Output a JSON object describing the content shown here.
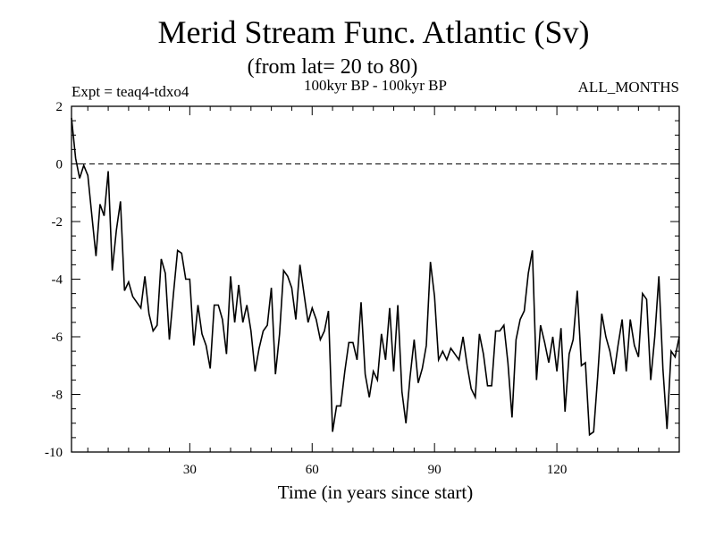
{
  "chart_data": {
    "type": "line",
    "title": "Merid Stream Func. Atlantic (Sv)",
    "subtitle": "(from lat= 20 to 80)",
    "annotation_left": "Expt = teaq4-tdxo4",
    "annotation_center": "100kyr BP - 100kyr BP",
    "annotation_right": "ALL_MONTHS",
    "xlabel": "Time (in years since start)",
    "ylabel": "",
    "xlim": [
      1,
      150
    ],
    "ylim": [
      -10,
      2
    ],
    "xticks": [
      30,
      60,
      90,
      120
    ],
    "yticks": [
      2,
      0,
      -2,
      -4,
      -6,
      -8,
      -10
    ],
    "reference_line": 0,
    "series": [
      {
        "name": "Merid Stream Func. Atlantic",
        "x": [
          1,
          2,
          3,
          4,
          5,
          6,
          7,
          8,
          9,
          10,
          11,
          12,
          13,
          14,
          15,
          16,
          17,
          18,
          19,
          20,
          21,
          22,
          23,
          24,
          25,
          26,
          27,
          28,
          29,
          30,
          31,
          32,
          33,
          34,
          35,
          36,
          37,
          38,
          39,
          40,
          41,
          42,
          43,
          44,
          45,
          46,
          47,
          48,
          49,
          50,
          51,
          52,
          53,
          54,
          55,
          56,
          57,
          58,
          59,
          60,
          61,
          62,
          63,
          64,
          65,
          66,
          67,
          68,
          69,
          70,
          71,
          72,
          73,
          74,
          75,
          76,
          77,
          78,
          79,
          80,
          81,
          82,
          83,
          84,
          85,
          86,
          87,
          88,
          89,
          90,
          91,
          92,
          93,
          94,
          95,
          96,
          97,
          98,
          99,
          100,
          101,
          102,
          103,
          104,
          105,
          106,
          107,
          108,
          109,
          110,
          111,
          112,
          113,
          114,
          115,
          116,
          117,
          118,
          119,
          120,
          121,
          122,
          123,
          124,
          125,
          126,
          127,
          128,
          129,
          130,
          131,
          132,
          133,
          134,
          135,
          136,
          137,
          138,
          139,
          140,
          141,
          142,
          143,
          144,
          145,
          146,
          147,
          148,
          149,
          150
        ],
        "values": [
          1.6,
          0.2,
          -0.5,
          -0.05,
          -0.4,
          -1.8,
          -3.2,
          -1.4,
          -1.8,
          -0.25,
          -3.7,
          -2.3,
          -1.3,
          -4.4,
          -4.1,
          -4.6,
          -4.8,
          -5.0,
          -3.9,
          -5.2,
          -5.8,
          -5.6,
          -3.3,
          -3.8,
          -6.1,
          -4.5,
          -3.0,
          -3.1,
          -4.0,
          -4.0,
          -6.3,
          -4.9,
          -5.9,
          -6.3,
          -7.1,
          -4.9,
          -4.9,
          -5.4,
          -6.6,
          -3.9,
          -5.5,
          -4.2,
          -5.5,
          -4.9,
          -5.8,
          -7.2,
          -6.4,
          -5.8,
          -5.6,
          -4.3,
          -7.3,
          -5.9,
          -3.7,
          -3.9,
          -4.3,
          -5.4,
          -3.5,
          -4.5,
          -5.5,
          -5.0,
          -5.4,
          -6.1,
          -5.8,
          -5.1,
          -9.3,
          -8.4,
          -8.4,
          -7.2,
          -6.2,
          -6.2,
          -6.8,
          -4.8,
          -7.3,
          -8.1,
          -7.2,
          -7.5,
          -5.9,
          -6.8,
          -5.0,
          -7.2,
          -4.9,
          -7.9,
          -9.0,
          -7.4,
          -6.1,
          -7.6,
          -7.1,
          -6.3,
          -3.4,
          -4.6,
          -6.8,
          -6.5,
          -6.8,
          -6.4,
          -6.6,
          -6.8,
          -6.0,
          -7.0,
          -7.8,
          -8.1,
          -5.9,
          -6.6,
          -7.7,
          -7.7,
          -5.8,
          -5.8,
          -5.6,
          -6.9,
          -8.8,
          -6.1,
          -5.4,
          -5.1,
          -3.8,
          -3.0,
          -7.5,
          -5.6,
          -6.2,
          -6.9,
          -6.0,
          -7.2,
          -5.7,
          -8.6,
          -6.6,
          -6.1,
          -4.4,
          -7.0,
          -6.9,
          -9.4,
          -9.3,
          -7.4,
          -5.2,
          -6.0,
          -6.5,
          -7.3,
          -6.3,
          -5.4,
          -7.2,
          -5.4,
          -6.3,
          -6.7,
          -4.5,
          -4.7,
          -7.5,
          -6.0,
          -3.9,
          -7.1,
          -9.2,
          -6.5,
          -6.7,
          -6.0
        ],
        "color": "#000000"
      }
    ]
  }
}
